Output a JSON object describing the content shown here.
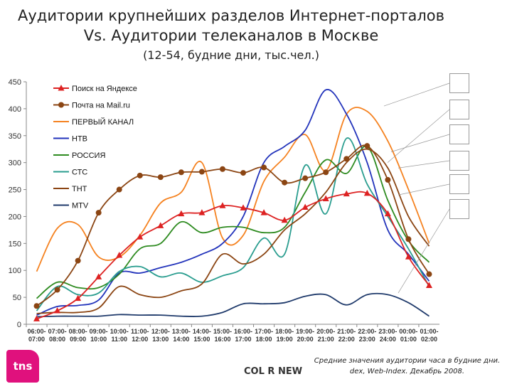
{
  "title_line1": "Аудитории крупнейших разделов Интернет-порталов",
  "title_line2": "Vs. Аудитории телеканалов в Москве",
  "subtitle": "(12-54, будние дни, тыс.чел.)",
  "source_note": "Средние значения аудитории часа в будние дни.",
  "source_note2": "dex, Web-Index. Декабрь 2008.",
  "logo_text": "tns",
  "brand": "COL R NEW",
  "chart_data": {
    "type": "line",
    "ylim": [
      0,
      450
    ],
    "yticks": [
      0,
      50,
      100,
      150,
      200,
      250,
      300,
      350,
      400,
      450
    ],
    "categories": [
      "06:00-07:00",
      "07:00-08:00",
      "08:00-09:00",
      "09:00-10:00",
      "10:00-11:00",
      "11:00-12:00",
      "12:00-13:00",
      "13:00-14:00",
      "14:00-15:00",
      "15:00-16:00",
      "16:00-17:00",
      "17:00-18:00",
      "18:00-19:00",
      "19:00-20:00",
      "20:00-21:00",
      "21:00-22:00",
      "22:00-23:00",
      "23:00-24:00",
      "00:00-01:00",
      "01:00-02:00"
    ],
    "legend_position": "top-left",
    "grid": false,
    "series": [
      {
        "name": "Поиск на Яндексе",
        "color": "#dd2222",
        "marker": "triangle",
        "values": [
          10,
          25,
          48,
          88,
          128,
          162,
          183,
          205,
          207,
          220,
          216,
          207,
          193,
          217,
          233,
          242,
          243,
          205,
          125,
          72
        ]
      },
      {
        "name": "Почта на Mail.ru",
        "color": "#8b4513",
        "marker": "circle",
        "values": [
          34,
          64,
          118,
          207,
          250,
          276,
          273,
          282,
          283,
          288,
          281,
          291,
          263,
          271,
          282,
          307,
          331,
          268,
          158,
          93
        ]
      },
      {
        "name": "ПЕРВЫЙ КАНАЛ",
        "color": "#f58220",
        "values": [
          98,
          178,
          185,
          125,
          125,
          165,
          225,
          245,
          300,
          160,
          165,
          265,
          310,
          352,
          285,
          390,
          395,
          340,
          250,
          150
        ]
      },
      {
        "name": "НТВ",
        "color": "#2233bb",
        "values": [
          17,
          33,
          35,
          45,
          95,
          95,
          105,
          115,
          130,
          150,
          200,
          300,
          330,
          360,
          435,
          390,
          300,
          175,
          130,
          80
        ]
      },
      {
        "name": "РОССИЯ",
        "color": "#2e8b20",
        "values": [
          48,
          78,
          68,
          68,
          93,
          140,
          150,
          190,
          170,
          180,
          180,
          170,
          180,
          245,
          305,
          280,
          330,
          230,
          155,
          115
        ]
      },
      {
        "name": "СТС",
        "color": "#2a9d8f",
        "values": [
          25,
          70,
          55,
          58,
          98,
          107,
          88,
          95,
          78,
          90,
          105,
          160,
          130,
          295,
          205,
          345,
          260,
          200,
          140,
          70
        ]
      },
      {
        "name": "ТНТ",
        "color": "#8b4513",
        "values": [
          20,
          22,
          22,
          30,
          70,
          55,
          50,
          62,
          75,
          130,
          112,
          130,
          175,
          205,
          245,
          300,
          325,
          290,
          200,
          145
        ]
      },
      {
        "name": "MTV",
        "color": "#1f3a6b",
        "values": [
          14,
          15,
          15,
          15,
          18,
          17,
          17,
          15,
          15,
          22,
          38,
          38,
          40,
          52,
          55,
          36,
          55,
          55,
          40,
          15
        ]
      }
    ]
  }
}
